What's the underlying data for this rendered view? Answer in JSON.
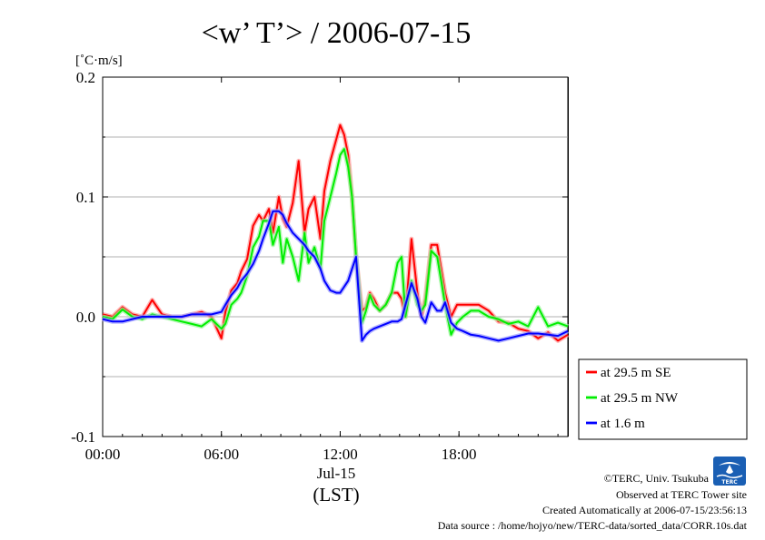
{
  "chart_data": {
    "type": "line",
    "title": "<w’ T’> / 2006-07-15",
    "ylabel": "[˚C·m/s]",
    "ylim": [
      -0.1,
      0.2
    ],
    "yticks": [
      {
        "value": 0.2,
        "label": "0.2"
      },
      {
        "value": 0.1,
        "label": "0.1"
      },
      {
        "value": 0.0,
        "label": "0.0"
      },
      {
        "value": -0.1,
        "label": "-0.1"
      }
    ],
    "xlim": [
      0,
      23.5
    ],
    "xticks": [
      {
        "value": 0,
        "label": "00:00"
      },
      {
        "value": 6,
        "label": "06:00"
      },
      {
        "value": 12,
        "label": "12:00"
      },
      {
        "value": 18,
        "label": "18:00"
      }
    ],
    "xdate": "Jul-15",
    "xlabel": "(LST)",
    "grid": "horizontal",
    "legend_position": "right",
    "series": [
      {
        "name": "at 29.5 m SE",
        "color": "#ff0000",
        "x": [
          0,
          0.5,
          1,
          1.5,
          2,
          2.5,
          3,
          3.5,
          4,
          4.5,
          5,
          5.5,
          6,
          6.2,
          6.5,
          6.8,
          7,
          7.3,
          7.6,
          7.9,
          8.1,
          8.4,
          8.6,
          8.9,
          9.1,
          9.3,
          9.6,
          9.9,
          10.2,
          10.4,
          10.7,
          11,
          11.2,
          11.5,
          11.8,
          12,
          12.2,
          12.4,
          12.6,
          12.8,
          13.1,
          13.3,
          13.5,
          13.7,
          14,
          14.3,
          14.6,
          14.9,
          15.1,
          15.3,
          15.6,
          15.9,
          16.1,
          16.3,
          16.6,
          16.9,
          17.1,
          17.3,
          17.6,
          17.9,
          18.2,
          18.6,
          19,
          19.5,
          20,
          20.5,
          21,
          21.5,
          22,
          22.5,
          23,
          23.5
        ],
        "values": [
          0.002,
          0.0,
          0.008,
          0.002,
          0.0,
          0.014,
          0.002,
          0.0,
          0.0,
          0.002,
          0.004,
          0.0,
          -0.018,
          0.004,
          0.022,
          0.028,
          0.038,
          0.048,
          0.076,
          0.085,
          0.08,
          0.09,
          0.07,
          0.1,
          0.082,
          0.075,
          0.095,
          0.13,
          0.07,
          0.09,
          0.1,
          0.065,
          0.105,
          0.13,
          0.148,
          0.16,
          0.152,
          0.135,
          0.1,
          0.05,
          0.005,
          0.008,
          0.02,
          0.015,
          0.005,
          0.01,
          0.02,
          0.02,
          0.015,
          0.0,
          0.065,
          0.02,
          0.0,
          0.015,
          0.06,
          0.06,
          0.04,
          0.02,
          0.0,
          0.01,
          0.01,
          0.01,
          0.01,
          0.005,
          -0.004,
          -0.005,
          -0.01,
          -0.012,
          -0.018,
          -0.013,
          -0.02,
          -0.015
        ]
      },
      {
        "name": "at 29.5 m NW",
        "color": "#00ee00",
        "x": [
          0,
          0.5,
          1,
          1.5,
          2,
          2.5,
          3,
          3.5,
          4,
          4.5,
          5,
          5.5,
          6,
          6.2,
          6.5,
          6.8,
          7,
          7.3,
          7.6,
          7.9,
          8.1,
          8.4,
          8.6,
          8.9,
          9.1,
          9.3,
          9.6,
          9.9,
          10.2,
          10.4,
          10.7,
          11,
          11.2,
          11.5,
          11.8,
          12,
          12.2,
          12.4,
          12.6,
          12.8,
          13.1,
          13.3,
          13.5,
          13.7,
          14,
          14.3,
          14.6,
          14.9,
          15.1,
          15.3,
          15.6,
          15.9,
          16.1,
          16.3,
          16.6,
          16.9,
          17.1,
          17.3,
          17.6,
          17.9,
          18.2,
          18.6,
          19,
          19.5,
          20,
          20.5,
          21,
          21.5,
          22,
          22.5,
          23,
          23.5
        ],
        "values": [
          0.0,
          -0.002,
          0.006,
          0.0,
          -0.002,
          0.002,
          0.0,
          -0.002,
          -0.004,
          -0.006,
          -0.008,
          -0.002,
          -0.01,
          -0.006,
          0.01,
          0.015,
          0.02,
          0.034,
          0.058,
          0.067,
          0.08,
          0.08,
          0.06,
          0.075,
          0.045,
          0.065,
          0.05,
          0.03,
          0.07,
          0.045,
          0.058,
          0.04,
          0.08,
          0.1,
          0.12,
          0.135,
          0.14,
          0.125,
          0.1,
          0.05,
          -0.005,
          0.005,
          0.018,
          0.01,
          0.005,
          0.01,
          0.02,
          0.045,
          0.05,
          0.0,
          0.03,
          0.01,
          0.005,
          0.01,
          0.055,
          0.05,
          0.03,
          0.01,
          -0.015,
          -0.005,
          0.0,
          0.005,
          0.005,
          0.0,
          -0.002,
          -0.006,
          -0.004,
          -0.008,
          0.008,
          -0.008,
          -0.005,
          -0.008
        ]
      },
      {
        "name": "at 1.6 m",
        "color": "#0000ff",
        "x": [
          0,
          0.5,
          1,
          1.5,
          2,
          2.5,
          3,
          3.5,
          4,
          4.5,
          5,
          5.5,
          6,
          6.2,
          6.5,
          6.8,
          7,
          7.3,
          7.6,
          7.9,
          8.1,
          8.4,
          8.6,
          8.9,
          9.1,
          9.3,
          9.6,
          9.9,
          10.2,
          10.4,
          10.7,
          11,
          11.2,
          11.5,
          11.8,
          12,
          12.2,
          12.4,
          12.6,
          12.8,
          13.1,
          13.3,
          13.5,
          13.7,
          14,
          14.3,
          14.6,
          14.9,
          15.1,
          15.3,
          15.6,
          15.9,
          16.1,
          16.3,
          16.6,
          16.9,
          17.1,
          17.3,
          17.6,
          17.9,
          18.2,
          18.6,
          19,
          19.5,
          20,
          20.5,
          21,
          21.5,
          22,
          22.5,
          23,
          23.5
        ],
        "values": [
          -0.002,
          -0.004,
          -0.004,
          -0.002,
          0.0,
          0.0,
          0.0,
          0.0,
          0.0,
          0.002,
          0.002,
          0.002,
          0.004,
          0.01,
          0.018,
          0.024,
          0.03,
          0.036,
          0.044,
          0.055,
          0.065,
          0.078,
          0.088,
          0.088,
          0.085,
          0.078,
          0.07,
          0.065,
          0.06,
          0.055,
          0.05,
          0.04,
          0.03,
          0.022,
          0.02,
          0.02,
          0.025,
          0.03,
          0.04,
          0.05,
          -0.02,
          -0.015,
          -0.012,
          -0.01,
          -0.008,
          -0.006,
          -0.004,
          -0.004,
          -0.002,
          0.01,
          0.028,
          0.015,
          0.0,
          -0.005,
          0.012,
          0.005,
          0.005,
          0.012,
          -0.005,
          -0.01,
          -0.012,
          -0.015,
          -0.016,
          -0.018,
          -0.02,
          -0.018,
          -0.016,
          -0.014,
          -0.014,
          -0.015,
          -0.016,
          -0.012
        ]
      }
    ]
  },
  "credits": {
    "copyright": "©TERC, Univ. Tsukuba",
    "observed": "Observed at TERC Tower site",
    "created": "Created Automatically at 2006-07-15/23:56:13",
    "source": "Data source : /home/hojyo/new/TERC-data/sorted_data/CORR.10s.dat"
  },
  "logo": {
    "text": "TERC",
    "color": "#1a5fb4"
  }
}
